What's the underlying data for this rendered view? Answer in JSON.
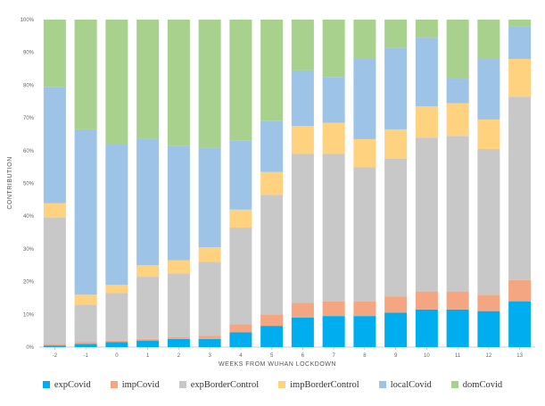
{
  "chart_data": {
    "type": "bar",
    "stacked": true,
    "percent": true,
    "xlabel": "WEEKS FROM WUHAN LOCKDOWN",
    "ylabel": "CONTRIBUTION",
    "ylim": [
      0,
      100
    ],
    "yticks": [
      "0%",
      "10%",
      "20%",
      "30%",
      "40%",
      "50%",
      "60%",
      "70%",
      "80%",
      "90%",
      "100%"
    ],
    "categories": [
      "-2",
      "-1",
      "0",
      "1",
      "2",
      "3",
      "4",
      "5",
      "6",
      "7",
      "8",
      "9",
      "10",
      "11",
      "12",
      "13"
    ],
    "legend_position": "bottom",
    "grid": false,
    "series": [
      {
        "name": "expCovid",
        "color": "#00aeef",
        "values": [
          0.5,
          1,
          1.5,
          2,
          2.5,
          2.5,
          4.5,
          6.5,
          9,
          9.5,
          9.5,
          10.5,
          11.5,
          11.5,
          11,
          14
        ]
      },
      {
        "name": "impCovid",
        "color": "#f4a582",
        "values": [
          0.5,
          0.5,
          0.5,
          0.5,
          0.5,
          1,
          2.5,
          3.5,
          4.5,
          4.5,
          4.5,
          5,
          5.5,
          5.5,
          5,
          6.5
        ]
      },
      {
        "name": "expBorderControl",
        "color": "#c8c8c8",
        "values": [
          38.5,
          11.5,
          14.5,
          19,
          19.5,
          22.5,
          29.5,
          36.5,
          45.5,
          45,
          41,
          42,
          47,
          47.5,
          44.5,
          56
        ]
      },
      {
        "name": "impBorderControl",
        "color": "#ffd27f",
        "values": [
          4.5,
          3,
          2.5,
          3.5,
          4,
          4.5,
          5.5,
          7,
          8.5,
          9.5,
          8.5,
          9,
          9.5,
          10,
          9,
          11.5
        ]
      },
      {
        "name": "localCovid",
        "color": "#9dc3e6",
        "values": [
          35.5,
          50.5,
          43,
          38.5,
          35,
          30.5,
          21,
          15.5,
          17,
          14,
          24.5,
          25,
          21,
          7.5,
          18.5,
          10
        ]
      },
      {
        "name": "domCovid",
        "color": "#a9d18e",
        "values": [
          20.5,
          33.5,
          38,
          36.5,
          38.5,
          39,
          37,
          31,
          15.5,
          17.5,
          12,
          8.5,
          5.5,
          18,
          12,
          2
        ]
      }
    ]
  }
}
